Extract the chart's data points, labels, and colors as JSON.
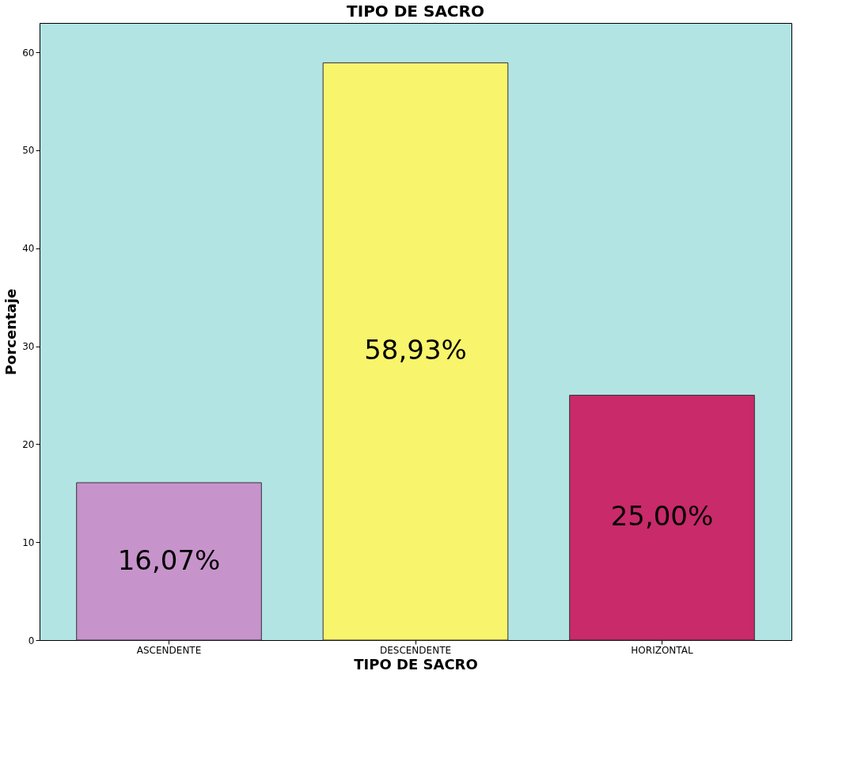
{
  "chart_data": {
    "type": "bar",
    "title": "TIPO DE SACRO",
    "xlabel": "TIPO DE SACRO",
    "ylabel": "Porcentaje",
    "categories": [
      "ASCENDENTE",
      "DESCENDENTE",
      "HORIZONTAL"
    ],
    "values": [
      16.07,
      58.93,
      25.0
    ],
    "colors": [
      "#c793cb",
      "#f8f46c",
      "#c82a6a"
    ],
    "value_labels": [
      "16,07%",
      "58,93%",
      "25,00%"
    ],
    "ylim": [
      0,
      63
    ],
    "yticks": [
      0,
      10,
      20,
      30,
      40,
      50,
      60
    ],
    "grid": false
  }
}
